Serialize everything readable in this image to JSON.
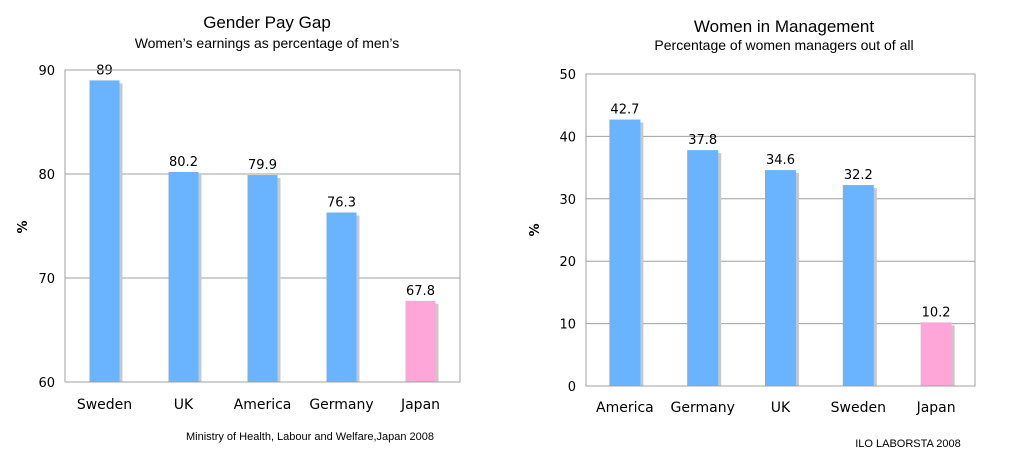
{
  "chart_data": [
    {
      "type": "bar",
      "title": "Gender Pay Gap",
      "subtitle": "Women’s earnings as percentage of men’s",
      "ylabel": "%",
      "xlabel": "",
      "ylim": [
        60,
        90
      ],
      "yticks": [
        60,
        70,
        80,
        90
      ],
      "grid": true,
      "categories": [
        "Sweden",
        "UK",
        "America",
        "Germany",
        "Japan"
      ],
      "values": [
        89,
        80.2,
        79.9,
        76.3,
        67.8
      ],
      "value_labels": [
        "89",
        "80.2",
        "79.9",
        "76.3",
        "67.8"
      ],
      "bar_colors": [
        "#6ab4ff",
        "#6ab4ff",
        "#6ab4ff",
        "#6ab4ff",
        "#ffa6d9"
      ],
      "source": "Ministry of Health, Labour and Welfare,Japan 2008"
    },
    {
      "type": "bar",
      "title": "Women in Management",
      "subtitle": "Percentage of women managers out of all",
      "ylabel": "%",
      "xlabel": "",
      "ylim": [
        0,
        50
      ],
      "yticks": [
        0,
        10,
        20,
        30,
        40,
        50
      ],
      "grid": true,
      "categories": [
        "America",
        "Germany",
        "UK",
        "Sweden",
        "Japan"
      ],
      "values": [
        42.7,
        37.8,
        34.6,
        32.2,
        10.2
      ],
      "value_labels": [
        "42.7",
        "37.8",
        "34.6",
        "32.2",
        "10.2"
      ],
      "bar_colors": [
        "#6ab4ff",
        "#6ab4ff",
        "#6ab4ff",
        "#6ab4ff",
        "#ffa6d9"
      ],
      "source": "ILO LABORSTA 2008"
    }
  ]
}
